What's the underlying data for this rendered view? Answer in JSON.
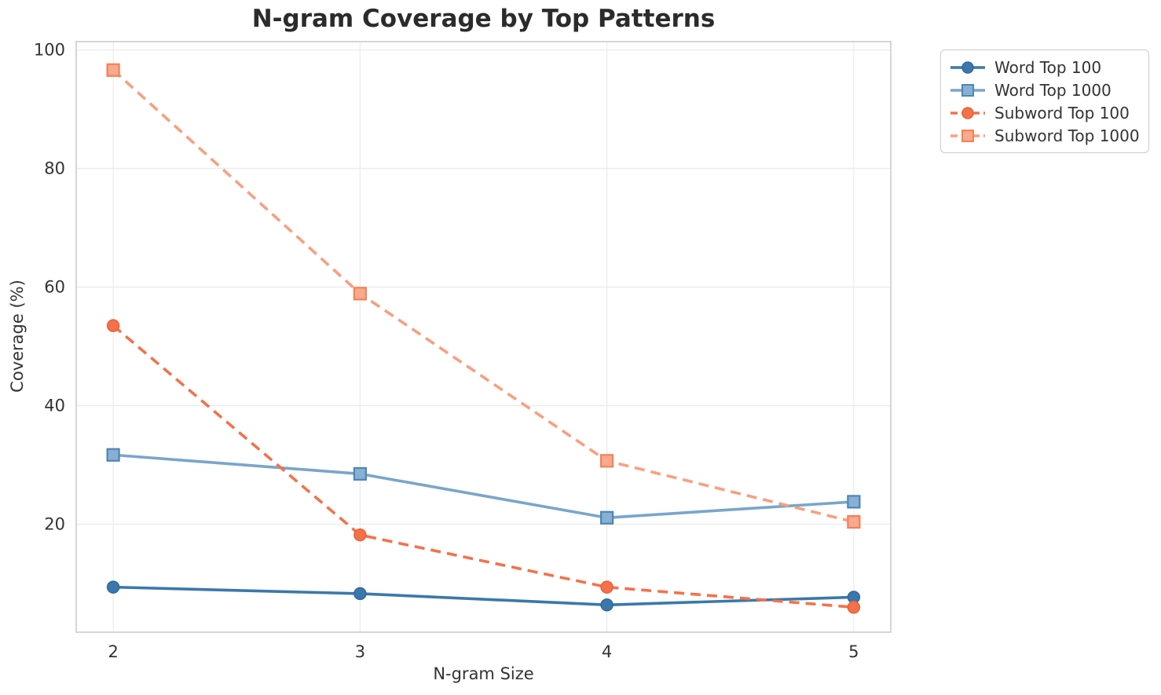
{
  "chart_data": {
    "type": "line",
    "title": "N-gram Coverage by Top Patterns",
    "xlabel": "N-gram Size",
    "ylabel": "Coverage (%)",
    "x": [
      2,
      3,
      4,
      5
    ],
    "xtick_labels": [
      "2",
      "3",
      "4",
      "5"
    ],
    "yticks": [
      20,
      40,
      60,
      80,
      100
    ],
    "ytick_labels": [
      "20",
      "40",
      "60",
      "80",
      "100"
    ],
    "xlim": [
      1.85,
      5.15
    ],
    "ylim": [
      1.8,
      101.4
    ],
    "grid": true,
    "legend_position": "upper-right-outside",
    "series": [
      {
        "name": "Word Top 100",
        "values": [
          9.4,
          8.3,
          6.4,
          7.7
        ],
        "color": "#3A78AC",
        "line_style": "solid",
        "marker": "circle",
        "marker_fill": "#3A78AC",
        "marker_edge": "#34689B"
      },
      {
        "name": "Word Top 1000",
        "values": [
          31.7,
          28.5,
          21.1,
          23.8
        ],
        "color": "#79A5CB",
        "line_style": "solid",
        "marker": "square",
        "marker_fill": "#89AFD2",
        "marker_edge": "#4C86B8"
      },
      {
        "name": "Subword Top 100",
        "values": [
          53.5,
          18.2,
          9.4,
          6.0
        ],
        "color": "#F4714A",
        "line_style": "dashed",
        "marker": "circle",
        "marker_fill": "#F4714A",
        "marker_edge": "#E86238"
      },
      {
        "name": "Subword Top 1000",
        "values": [
          96.6,
          58.9,
          30.7,
          20.4
        ],
        "color": "#F89F80",
        "line_style": "dashed",
        "marker": "square",
        "marker_fill": "#F9A98C",
        "marker_edge": "#F58057"
      }
    ],
    "colors": {
      "background": "#FFFFFF",
      "grid": "#ECECEC",
      "spine": "#D5D5D5",
      "tick_label": "#333333",
      "title": "#2B2B2B"
    }
  }
}
